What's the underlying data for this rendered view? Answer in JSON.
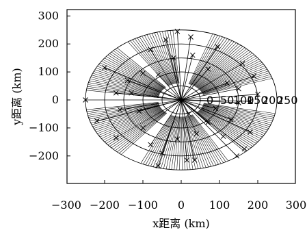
{
  "chart_data": {
    "type": "scatter",
    "xlabel": "x距离 (km)",
    "ylabel": "y距离 (km)",
    "xlim": [
      -300,
      300
    ],
    "ylim": [
      -300,
      300
    ],
    "x_ticks": [
      "−300",
      "−200",
      "−100",
      "0",
      "100",
      "200",
      "300"
    ],
    "y_ticks": [
      "300",
      "200",
      "100",
      "0",
      "−100",
      "−200"
    ],
    "x_tick_values": [
      -300,
      -200,
      -100,
      0,
      100,
      200,
      300
    ],
    "y_tick_values": [
      300,
      200,
      100,
      0,
      -100,
      -200
    ],
    "ring_labels": [
      "0",
      "50",
      "100",
      "150",
      "200",
      "250"
    ],
    "ring_radii": [
      50,
      100,
      150,
      200,
      250
    ],
    "grid": false,
    "points": [
      {
        "x": -250,
        "y": 0
      },
      {
        "x": -10,
        "y": 245
      },
      {
        "x": 25,
        "y": 225
      },
      {
        "x": -40,
        "y": 215
      },
      {
        "x": 95,
        "y": 190
      },
      {
        "x": -80,
        "y": 180
      },
      {
        "x": 160,
        "y": 130
      },
      {
        "x": -200,
        "y": 115
      },
      {
        "x": 30,
        "y": 160
      },
      {
        "x": -20,
        "y": 150
      },
      {
        "x": 70,
        "y": 110
      },
      {
        "x": -140,
        "y": 70
      },
      {
        "x": -100,
        "y": 95
      },
      {
        "x": -60,
        "y": 90
      },
      {
        "x": 190,
        "y": 85
      },
      {
        "x": 120,
        "y": 60
      },
      {
        "x": 150,
        "y": 40
      },
      {
        "x": -170,
        "y": 25
      },
      {
        "x": -130,
        "y": 25
      },
      {
        "x": 200,
        "y": 20
      },
      {
        "x": 180,
        "y": -5
      },
      {
        "x": -160,
        "y": -35
      },
      {
        "x": -110,
        "y": -40
      },
      {
        "x": 150,
        "y": -10
      },
      {
        "x": 90,
        "y": -30
      },
      {
        "x": 20,
        "y": -50
      },
      {
        "x": -220,
        "y": -75
      },
      {
        "x": -170,
        "y": -135
      },
      {
        "x": -100,
        "y": -100
      },
      {
        "x": 70,
        "y": -80
      },
      {
        "x": 130,
        "y": -70
      },
      {
        "x": -80,
        "y": -160
      },
      {
        "x": -10,
        "y": -140
      },
      {
        "x": 40,
        "y": -120
      },
      {
        "x": 110,
        "y": -130
      },
      {
        "x": 180,
        "y": -115
      },
      {
        "x": -50,
        "y": -190
      },
      {
        "x": 145,
        "y": -200
      },
      {
        "x": 165,
        "y": -175
      },
      {
        "x": 15,
        "y": -215
      },
      {
        "x": 35,
        "y": -215
      },
      {
        "x": -60,
        "y": -235
      }
    ],
    "hatched_sectors": [
      {
        "start": 18,
        "end": 72
      },
      {
        "start": 95,
        "end": 125
      },
      {
        "start": 132,
        "end": 172
      },
      {
        "start": 188,
        "end": 232
      },
      {
        "start": 245,
        "end": 300
      },
      {
        "start": 312,
        "end": 350
      }
    ]
  }
}
